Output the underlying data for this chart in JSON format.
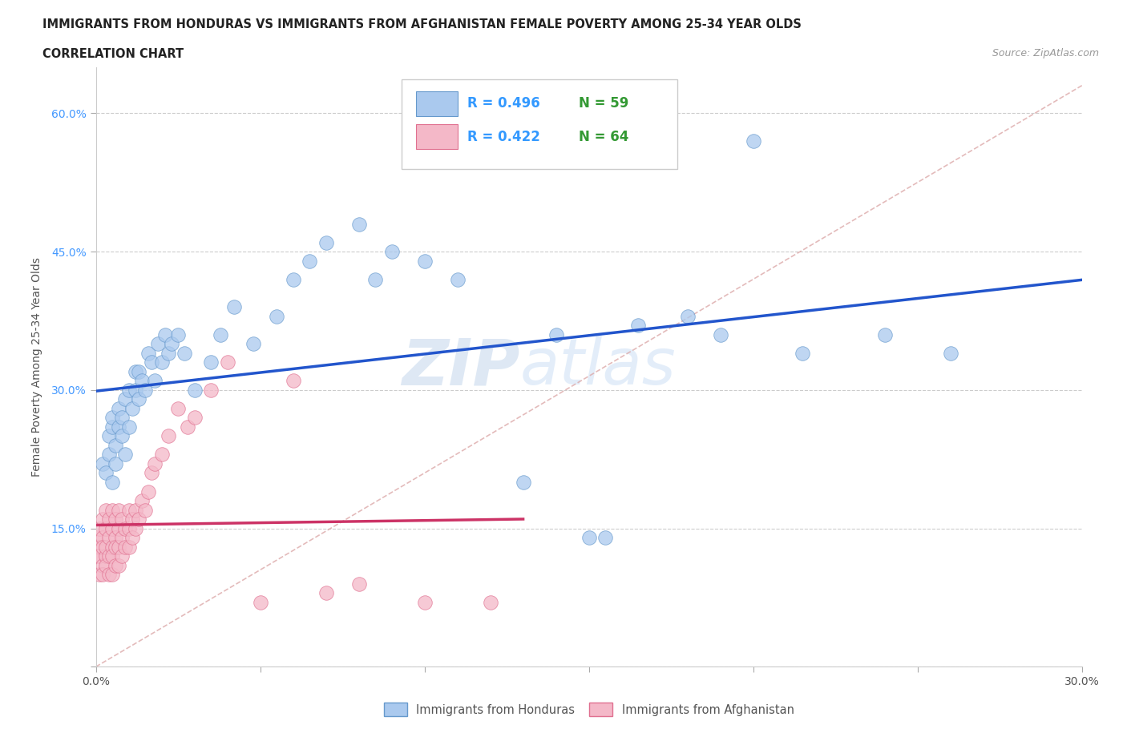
{
  "title_line1": "IMMIGRANTS FROM HONDURAS VS IMMIGRANTS FROM AFGHANISTAN FEMALE POVERTY AMONG 25-34 YEAR OLDS",
  "title_line2": "CORRELATION CHART",
  "source": "Source: ZipAtlas.com",
  "ylabel": "Female Poverty Among 25-34 Year Olds",
  "xlim": [
    0.0,
    0.3
  ],
  "ylim": [
    0.0,
    0.65
  ],
  "xticks": [
    0.0,
    0.05,
    0.1,
    0.15,
    0.2,
    0.25,
    0.3
  ],
  "xticklabels": [
    "0.0%",
    "",
    "",
    "",
    "",
    "",
    "30.0%"
  ],
  "yticks": [
    0.0,
    0.15,
    0.3,
    0.45,
    0.6
  ],
  "yticklabels": [
    "",
    "15.0%",
    "30.0%",
    "45.0%",
    "60.0%"
  ],
  "honduras_color": "#aac9ee",
  "honduras_edge": "#6699cc",
  "afghanistan_color": "#f4b8c8",
  "afghanistan_edge": "#e07090",
  "r_honduras": 0.496,
  "n_honduras": 59,
  "r_afghanistan": 0.422,
  "n_afghanistan": 64,
  "watermark_zip": "ZIP",
  "watermark_atlas": "atlas",
  "legend_r_color": "#3399ff",
  "legend_n_color": "#339933",
  "honduras_line_color": "#2255cc",
  "afghanistan_line_color": "#cc3366",
  "dashed_line_color": "#ddaaaa",
  "honduras_scatter_x": [
    0.002,
    0.003,
    0.004,
    0.004,
    0.005,
    0.005,
    0.005,
    0.006,
    0.006,
    0.007,
    0.007,
    0.008,
    0.008,
    0.009,
    0.009,
    0.01,
    0.01,
    0.011,
    0.012,
    0.012,
    0.013,
    0.013,
    0.014,
    0.015,
    0.016,
    0.017,
    0.018,
    0.019,
    0.02,
    0.021,
    0.022,
    0.023,
    0.025,
    0.027,
    0.03,
    0.035,
    0.038,
    0.042,
    0.048,
    0.055,
    0.06,
    0.065,
    0.07,
    0.08,
    0.085,
    0.09,
    0.1,
    0.11,
    0.13,
    0.14,
    0.15,
    0.155,
    0.165,
    0.18,
    0.19,
    0.2,
    0.215,
    0.24,
    0.26
  ],
  "honduras_scatter_y": [
    0.22,
    0.21,
    0.25,
    0.23,
    0.2,
    0.26,
    0.27,
    0.24,
    0.22,
    0.26,
    0.28,
    0.25,
    0.27,
    0.23,
    0.29,
    0.26,
    0.3,
    0.28,
    0.3,
    0.32,
    0.29,
    0.32,
    0.31,
    0.3,
    0.34,
    0.33,
    0.31,
    0.35,
    0.33,
    0.36,
    0.34,
    0.35,
    0.36,
    0.34,
    0.3,
    0.33,
    0.36,
    0.39,
    0.35,
    0.38,
    0.42,
    0.44,
    0.46,
    0.48,
    0.42,
    0.45,
    0.44,
    0.42,
    0.2,
    0.36,
    0.14,
    0.14,
    0.37,
    0.38,
    0.36,
    0.57,
    0.34,
    0.36,
    0.34
  ],
  "afghanistan_scatter_x": [
    0.0,
    0.0,
    0.001,
    0.001,
    0.001,
    0.001,
    0.002,
    0.002,
    0.002,
    0.002,
    0.002,
    0.003,
    0.003,
    0.003,
    0.003,
    0.003,
    0.004,
    0.004,
    0.004,
    0.004,
    0.005,
    0.005,
    0.005,
    0.005,
    0.005,
    0.006,
    0.006,
    0.006,
    0.006,
    0.007,
    0.007,
    0.007,
    0.007,
    0.008,
    0.008,
    0.008,
    0.009,
    0.009,
    0.01,
    0.01,
    0.01,
    0.011,
    0.011,
    0.012,
    0.012,
    0.013,
    0.014,
    0.015,
    0.016,
    0.017,
    0.018,
    0.02,
    0.022,
    0.025,
    0.028,
    0.03,
    0.035,
    0.04,
    0.05,
    0.06,
    0.07,
    0.08,
    0.1,
    0.12
  ],
  "afghanistan_scatter_y": [
    0.12,
    0.14,
    0.1,
    0.13,
    0.15,
    0.12,
    0.11,
    0.14,
    0.16,
    0.13,
    0.1,
    0.12,
    0.15,
    0.17,
    0.13,
    0.11,
    0.14,
    0.16,
    0.12,
    0.1,
    0.13,
    0.15,
    0.17,
    0.12,
    0.1,
    0.14,
    0.16,
    0.13,
    0.11,
    0.15,
    0.17,
    0.13,
    0.11,
    0.16,
    0.14,
    0.12,
    0.15,
    0.13,
    0.17,
    0.15,
    0.13,
    0.16,
    0.14,
    0.17,
    0.15,
    0.16,
    0.18,
    0.17,
    0.19,
    0.21,
    0.22,
    0.23,
    0.25,
    0.28,
    0.26,
    0.27,
    0.3,
    0.33,
    0.07,
    0.31,
    0.08,
    0.09,
    0.07,
    0.07
  ],
  "dashed_line_x0": 0.0,
  "dashed_line_y0": 0.0,
  "dashed_line_x1": 0.3,
  "dashed_line_y1": 0.63
}
